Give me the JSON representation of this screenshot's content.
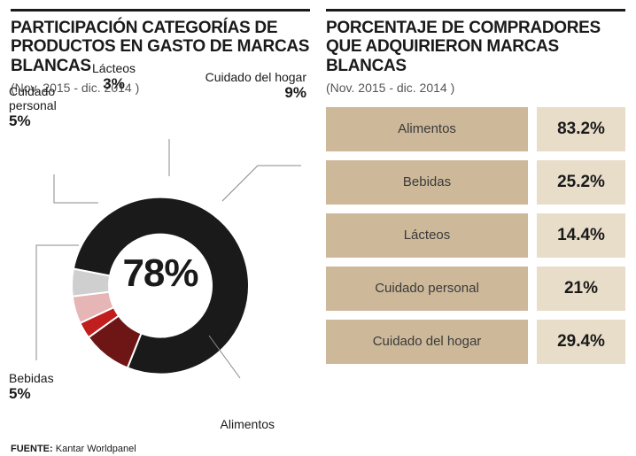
{
  "left": {
    "title": "PARTICIPACIÓN CATEGORÍAS DE PRODUCTOS EN GASTO DE MARCAS BLANCAS",
    "subtitle": "(Nov. 2015 - dic. 2014 )",
    "chart": {
      "type": "donut",
      "inner_radius_ratio": 0.58,
      "background_color": "#ffffff",
      "center_value": "78%",
      "center_fontsize": 44,
      "slices": [
        {
          "label": "Alimentos",
          "value": 78,
          "color": "#1a1a1a",
          "pct_text": "78%"
        },
        {
          "label": "Cuidado del hogar",
          "value": 9,
          "color": "#6e1616",
          "pct_text": "9%"
        },
        {
          "label": "Lácteos",
          "value": 3,
          "color": "#c11e1e",
          "pct_text": "3%"
        },
        {
          "label": "Cuidado personal",
          "value": 5,
          "color": "#e6b5b5",
          "pct_text": "5%"
        },
        {
          "label": "Bebidas",
          "value": 5,
          "color": "#cfcfcf",
          "pct_text": "5%"
        }
      ]
    },
    "source_label": "FUENTE:",
    "source_value": "Kantar Worldpanel"
  },
  "right": {
    "title": "PORCENTAJE DE COMPRADORES QUE ADQUIRIERON MARCAS BLANCAS",
    "subtitle": "(Nov. 2015 - dic. 2014 )",
    "table": {
      "type": "table",
      "label_bg": "#cdb99a",
      "value_bg": "#e8ddc9",
      "label_color": "#3a3a3a",
      "value_color": "#1a1a1a",
      "value_fontsize": 19,
      "rows": [
        {
          "label": "Alimentos",
          "value": "83.2%"
        },
        {
          "label": "Bebidas",
          "value": "25.2%"
        },
        {
          "label": "Lácteos",
          "value": "14.4%"
        },
        {
          "label": "Cuidado personal",
          "value": "21%"
        },
        {
          "label": "Cuidado del hogar",
          "value": "29.4%"
        }
      ]
    }
  }
}
